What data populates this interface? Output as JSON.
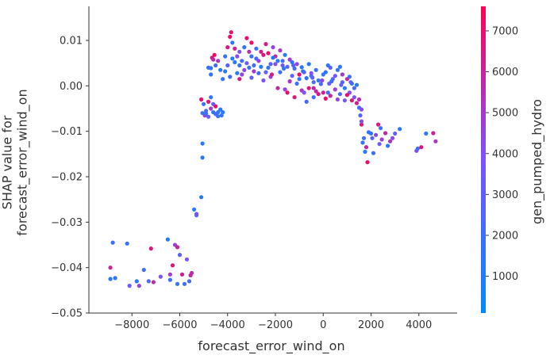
{
  "chart_data": {
    "type": "scatter",
    "xlabel": "forecast_error_wind_on",
    "ylabel": "SHAP value for\nforecast_error_wind_on",
    "xlim": [
      -9800,
      5600
    ],
    "ylim": [
      -0.05,
      0.0175
    ],
    "x_ticks": [
      -8000,
      -6000,
      -4000,
      -2000,
      0,
      2000,
      4000
    ],
    "x_tick_labels": [
      "−8000",
      "−6000",
      "−4000",
      "−2000",
      "0",
      "2000",
      "4000"
    ],
    "y_ticks": [
      0.01,
      0.0,
      -0.01,
      -0.02,
      -0.03,
      -0.04,
      -0.05
    ],
    "y_tick_labels": [
      "0.01",
      "0.00",
      "−0.01",
      "−0.02",
      "−0.03",
      "−0.04",
      "−0.05"
    ],
    "grid": false,
    "colorbar": {
      "label": "gen_pumped_hydro",
      "range": [
        100,
        7600
      ],
      "ticks": [
        1000,
        2000,
        3000,
        4000,
        5000,
        6000,
        7000
      ],
      "tick_labels": [
        "1000",
        "2000",
        "3000",
        "4000",
        "5000",
        "6000",
        "7000"
      ],
      "color_low": "#008afb",
      "color_mid": "#7c52ff",
      "color_high": "#ff0052"
    },
    "points": [
      [
        -8900,
        -0.0425,
        1500
      ],
      [
        -8700,
        -0.0423,
        1200
      ],
      [
        -8800,
        -0.0345,
        1800
      ],
      [
        -8900,
        -0.04,
        6200
      ],
      [
        -8200,
        -0.0347,
        1900
      ],
      [
        -8100,
        -0.044,
        3500
      ],
      [
        -7800,
        -0.043,
        1400
      ],
      [
        -7700,
        -0.044,
        4500
      ],
      [
        -7500,
        -0.0405,
        2200
      ],
      [
        -7300,
        -0.043,
        2800
      ],
      [
        -7100,
        -0.0432,
        5600
      ],
      [
        -7200,
        -0.0358,
        6600
      ],
      [
        -6800,
        -0.042,
        3900
      ],
      [
        -6500,
        -0.0338,
        1300
      ],
      [
        -6400,
        -0.0427,
        1700
      ],
      [
        -6300,
        -0.0395,
        6900
      ],
      [
        -6200,
        -0.035,
        4700
      ],
      [
        -6100,
        -0.0436,
        1600
      ],
      [
        -6000,
        -0.0372,
        2800
      ],
      [
        -5900,
        -0.0415,
        6300
      ],
      [
        -5800,
        -0.0436,
        1900
      ],
      [
        -5700,
        -0.0382,
        3900
      ],
      [
        -5600,
        -0.043,
        2100
      ],
      [
        -5550,
        -0.0417,
        5900
      ],
      [
        -6400,
        -0.0415,
        4900
      ],
      [
        -6100,
        -0.0355,
        6100
      ],
      [
        -5500,
        -0.0412,
        5600
      ],
      [
        -5400,
        -0.0272,
        1300
      ],
      [
        -5300,
        -0.0285,
        2600
      ],
      [
        -5300,
        -0.0282,
        3500
      ],
      [
        -5100,
        -0.0245,
        1200
      ],
      [
        -5050,
        -0.0158,
        1400
      ],
      [
        -5050,
        -0.0127,
        1200
      ],
      [
        -5100,
        -0.003,
        7000
      ],
      [
        -5000,
        -0.004,
        1800
      ],
      [
        -4900,
        -0.0055,
        2500
      ],
      [
        -5050,
        -0.006,
        1900
      ],
      [
        -4950,
        -0.0065,
        4800
      ],
      [
        -4800,
        -0.0035,
        6600
      ],
      [
        -4700,
        -0.0025,
        1600
      ],
      [
        -4600,
        -0.004,
        3100
      ],
      [
        -4700,
        -0.005,
        4900
      ],
      [
        -4600,
        -0.0058,
        1500
      ],
      [
        -4500,
        -0.0062,
        2200
      ],
      [
        -4400,
        -0.0058,
        1700
      ],
      [
        -4500,
        -0.0045,
        7000
      ],
      [
        -4300,
        -0.0052,
        1300
      ],
      [
        -4200,
        -0.0058,
        1200
      ],
      [
        -4250,
        -0.0065,
        1600
      ],
      [
        -4400,
        -0.0067,
        1800
      ],
      [
        -4800,
        -0.0068,
        3300
      ],
      [
        -4900,
        -0.0061,
        1400
      ],
      [
        -4800,
        0.004,
        1500
      ],
      [
        -4700,
        0.0039,
        1600
      ],
      [
        -4650,
        0.0062,
        6700
      ],
      [
        -4600,
        0.0058,
        5800
      ],
      [
        -4700,
        0.0025,
        1400
      ],
      [
        -4550,
        0.0068,
        7300
      ],
      [
        -4500,
        0.0045,
        2100
      ],
      [
        -4400,
        0.0055,
        5100
      ],
      [
        -4300,
        0.0035,
        1300
      ],
      [
        -4200,
        0.0015,
        1700
      ],
      [
        -4100,
        0.0065,
        1800
      ],
      [
        -4000,
        0.0085,
        6500
      ],
      [
        -4000,
        0.0045,
        2900
      ],
      [
        -3900,
        0.0108,
        7200
      ],
      [
        -3850,
        0.0118,
        7100
      ],
      [
        -3800,
        0.0095,
        1400
      ],
      [
        -3700,
        0.0082,
        6200
      ],
      [
        -3600,
        0.0065,
        4200
      ],
      [
        -3500,
        0.0075,
        3900
      ],
      [
        -3500,
        0.0045,
        1600
      ],
      [
        -3400,
        0.0055,
        2000
      ],
      [
        -3300,
        0.0085,
        1500
      ],
      [
        -3200,
        0.0105,
        6900
      ],
      [
        -3100,
        0.0075,
        5600
      ],
      [
        -3000,
        0.0065,
        1800
      ],
      [
        -3000,
        0.0095,
        7200
      ],
      [
        -2900,
        0.0045,
        2300
      ],
      [
        -2800,
        0.0082,
        1700
      ],
      [
        -2700,
        0.0055,
        4700
      ],
      [
        -2600,
        0.0075,
        6400
      ],
      [
        -2500,
        0.0068,
        6800
      ],
      [
        -2400,
        0.0092,
        6400
      ],
      [
        -2300,
        0.0072,
        7100
      ],
      [
        -2200,
        0.0048,
        2600
      ],
      [
        -2100,
        0.0085,
        4400
      ],
      [
        -2000,
        0.0065,
        5900
      ],
      [
        -1900,
        0.0055,
        1200
      ],
      [
        -1800,
        0.0078,
        5100
      ],
      [
        -1700,
        0.0045,
        3300
      ],
      [
        -1600,
        0.0068,
        1400
      ],
      [
        -1500,
        0.0042,
        2700
      ],
      [
        -1400,
        0.0058,
        4900
      ],
      [
        -1300,
        0.0052,
        1300
      ],
      [
        -1200,
        0.0038,
        2100
      ],
      [
        -1100,
        0.0048,
        4600
      ],
      [
        -1000,
        0.0025,
        6900
      ],
      [
        -900,
        0.0041,
        1200
      ],
      [
        -800,
        0.003,
        3300
      ],
      [
        -700,
        0.0017,
        1500
      ],
      [
        -600,
        -0.0005,
        6800
      ],
      [
        -500,
        0.0022,
        1900
      ],
      [
        -400,
        0.0008,
        2400
      ],
      [
        -300,
        -0.0012,
        5700
      ],
      [
        -200,
        0.0012,
        1600
      ],
      [
        -100,
        0.0004,
        2200
      ],
      [
        0,
        -0.0015,
        6100
      ],
      [
        100,
        0.003,
        1400
      ],
      [
        200,
        0.0045,
        1300
      ],
      [
        250,
        0.0005,
        3300
      ],
      [
        300,
        -0.0022,
        5900
      ],
      [
        400,
        0.0015,
        2400
      ],
      [
        500,
        -0.0008,
        4800
      ],
      [
        600,
        0.0035,
        1400
      ],
      [
        700,
        -0.0018,
        2300
      ],
      [
        800,
        0.0025,
        5100
      ],
      [
        900,
        -0.0005,
        1200
      ],
      [
        1000,
        0.0015,
        6000
      ],
      [
        1100,
        -0.0015,
        4100
      ],
      [
        1200,
        0.0005,
        1700
      ],
      [
        1300,
        -0.0025,
        3900
      ],
      [
        1400,
        -0.0038,
        6300
      ],
      [
        1500,
        -0.0048,
        1900
      ],
      [
        1500,
        -0.003,
        5500
      ],
      [
        1600,
        -0.0052,
        4200
      ],
      [
        -1500,
        -0.0015,
        7000
      ],
      [
        -1200,
        -0.0025,
        6600
      ],
      [
        -900,
        -0.001,
        5200
      ],
      [
        -700,
        -0.0035,
        2300
      ],
      [
        -400,
        -0.0025,
        1800
      ],
      [
        -200,
        -0.0018,
        6600
      ],
      [
        100,
        -0.0028,
        7000
      ],
      [
        600,
        -0.003,
        4300
      ],
      [
        900,
        -0.0032,
        3400
      ],
      [
        1200,
        -0.0032,
        6800
      ],
      [
        -1600,
        -0.0008,
        4600
      ],
      [
        -1900,
        -0.0005,
        5800
      ],
      [
        -2200,
        0.002,
        4800
      ],
      [
        -2500,
        0.0012,
        3800
      ],
      [
        -2700,
        0.0028,
        1900
      ],
      [
        -3000,
        0.0018,
        2800
      ],
      [
        -3300,
        0.0035,
        4300
      ],
      [
        -3600,
        0.0028,
        1200
      ],
      [
        -3900,
        0.002,
        2100
      ],
      [
        -4100,
        0.0032,
        1700
      ],
      [
        -3700,
        0.0052,
        1300
      ],
      [
        -3200,
        0.005,
        3600
      ],
      [
        -2800,
        0.006,
        2500
      ],
      [
        -2300,
        0.004,
        1500
      ],
      [
        -1800,
        0.003,
        2000
      ],
      [
        -1300,
        0.0022,
        3100
      ],
      [
        -1000,
        0.0015,
        1700
      ],
      [
        -500,
        0.0028,
        4000
      ],
      [
        0,
        0.0025,
        1600
      ],
      [
        500,
        0.0022,
        3700
      ],
      [
        800,
        0.0008,
        2500
      ],
      [
        1100,
        0.002,
        1900
      ],
      [
        1400,
        0.0002,
        1400
      ],
      [
        -600,
        0.0048,
        1300
      ],
      [
        -300,
        0.0035,
        1800
      ],
      [
        300,
        0.004,
        2700
      ],
      [
        700,
        0.0042,
        1500
      ],
      [
        -1700,
        0.0055,
        2200
      ],
      [
        -2000,
        0.0048,
        4000
      ],
      [
        -2600,
        0.0042,
        1300
      ],
      [
        -3400,
        0.0025,
        4500
      ],
      [
        -1400,
        0.001,
        5400
      ],
      [
        -1100,
        0.0005,
        1900
      ],
      [
        -800,
        -0.0015,
        3800
      ],
      [
        -400,
        -0.0005,
        6000
      ],
      [
        200,
        -0.0015,
        2000
      ],
      [
        1300,
        -0.0005,
        2200
      ],
      [
        1000,
        -0.002,
        7000
      ],
      [
        -3800,
        0.006,
        1200
      ],
      [
        -3100,
        0.004,
        2000
      ],
      [
        -2400,
        0.003,
        3000
      ],
      [
        -2100,
        0.0062,
        1400
      ],
      [
        -1650,
        0.0038,
        1600
      ],
      [
        -1250,
        0.0045,
        2500
      ],
      [
        -850,
        0.0032,
        1500
      ],
      [
        -450,
        0.0018,
        2900
      ],
      [
        -50,
        0.0012,
        4400
      ],
      [
        350,
        0.001,
        1700
      ],
      [
        750,
        0.0002,
        3000
      ],
      [
        1150,
        0.0008,
        2800
      ],
      [
        -3500,
        0.0015,
        6600
      ],
      [
        -2900,
        0.0032,
        5200
      ],
      [
        -2150,
        0.0025,
        6300
      ],
      [
        1550,
        -0.0065,
        2600
      ],
      [
        1600,
        -0.0085,
        6700
      ],
      [
        1600,
        -0.0078,
        4000
      ],
      [
        1700,
        -0.0115,
        2100
      ],
      [
        1650,
        -0.0125,
        1600
      ],
      [
        1800,
        -0.0135,
        6000
      ],
      [
        1750,
        -0.0145,
        1300
      ],
      [
        1900,
        -0.0102,
        1500
      ],
      [
        1850,
        -0.0168,
        7100
      ],
      [
        2000,
        -0.0105,
        1300
      ],
      [
        2100,
        -0.0148,
        2000
      ],
      [
        2200,
        -0.0108,
        4400
      ],
      [
        2300,
        -0.0085,
        6500
      ],
      [
        2350,
        -0.0128,
        3600
      ],
      [
        2400,
        -0.0093,
        1800
      ],
      [
        2600,
        -0.0104,
        6000
      ],
      [
        2700,
        -0.0132,
        1400
      ],
      [
        2900,
        -0.0115,
        4300
      ],
      [
        3000,
        -0.0105,
        3000
      ],
      [
        3200,
        -0.0095,
        1500
      ],
      [
        3900,
        -0.0143,
        4200
      ],
      [
        3950,
        -0.0138,
        1700
      ],
      [
        4100,
        -0.0135,
        6800
      ],
      [
        4300,
        -0.0105,
        1400
      ],
      [
        4600,
        -0.0104,
        6200
      ],
      [
        4700,
        -0.0122,
        5000
      ],
      [
        2050,
        -0.0115,
        2700
      ],
      [
        2450,
        -0.0118,
        4700
      ],
      [
        2800,
        -0.0122,
        5300
      ]
    ]
  }
}
